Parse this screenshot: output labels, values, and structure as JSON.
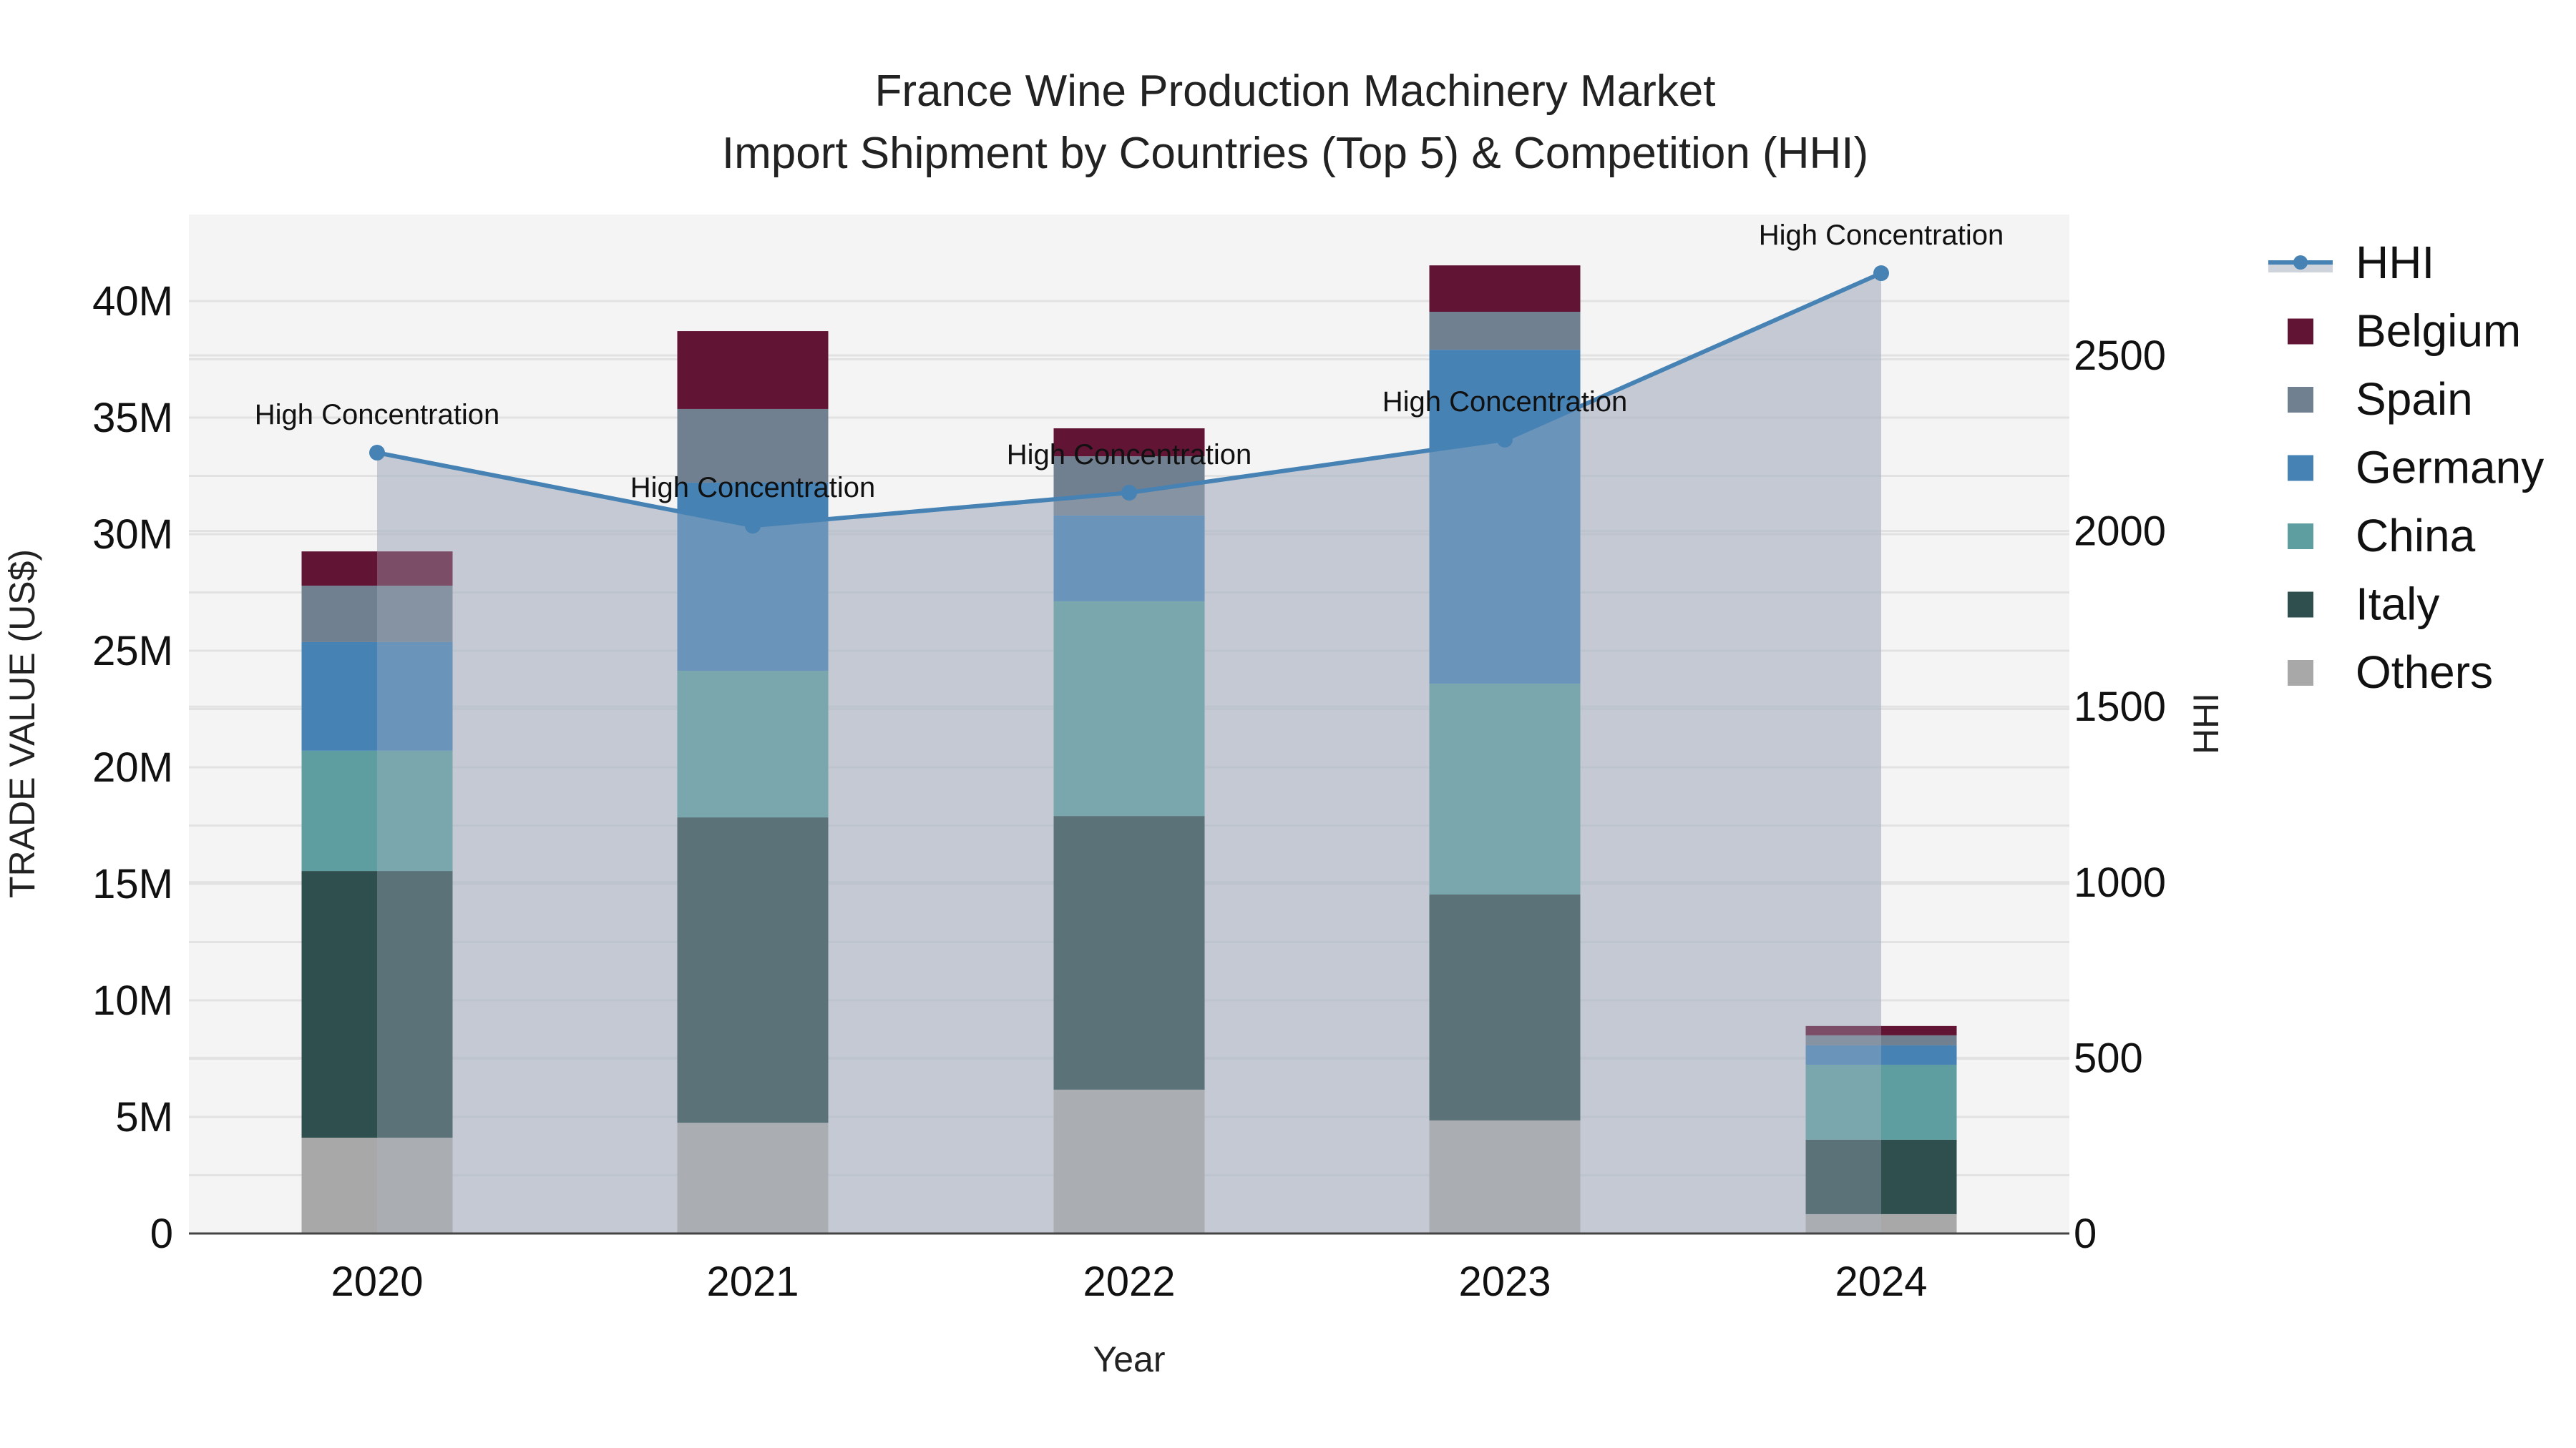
{
  "chart_data": {
    "type": "bar",
    "title": "France Wine Production Machinery Market",
    "subtitle": "Import Shipment by Countries (Top 5) & Competition (HHI)",
    "xlabel": "Year",
    "ylabel": "TRADE VALUE (US$)",
    "y2label": "HHI",
    "categories": [
      "2020",
      "2021",
      "2022",
      "2023",
      "2024"
    ],
    "stacked": true,
    "ylim": [
      0,
      44000000
    ],
    "y2lim": [
      0,
      2900
    ],
    "yticks": [
      0,
      5000000,
      10000000,
      15000000,
      20000000,
      25000000,
      30000000,
      35000000,
      40000000
    ],
    "ytick_labels": [
      "0",
      "5M",
      "10M",
      "15M",
      "20M",
      "25M",
      "30M",
      "35M",
      "40M"
    ],
    "y2ticks": [
      0,
      500,
      1000,
      1500,
      2000,
      2500
    ],
    "y2tick_labels": [
      "0",
      "500",
      "1000",
      "1500",
      "2000",
      "2500"
    ],
    "grid": true,
    "legend_position": "right",
    "series": [
      {
        "name": "Others",
        "color": "#a8a8a8",
        "values": [
          4110000,
          4750000,
          6170000,
          4850000,
          830000
        ]
      },
      {
        "name": "Italy",
        "color": "#2f4f4f",
        "values": [
          11440000,
          13100000,
          11740000,
          9690000,
          3190000
        ]
      },
      {
        "name": "China",
        "color": "#5f9ea0",
        "values": [
          5160000,
          6290000,
          9210000,
          9050000,
          3220000
        ]
      },
      {
        "name": "Germany",
        "color": "#4682b4",
        "values": [
          4660000,
          8070000,
          3680000,
          14320000,
          830000
        ]
      },
      {
        "name": "Spain",
        "color": "#708090",
        "values": [
          2420000,
          3160000,
          2540000,
          1630000,
          430000
        ]
      },
      {
        "name": "Belgium",
        "color": "#611434",
        "values": [
          1470000,
          3340000,
          1200000,
          1990000,
          400000
        ]
      }
    ],
    "line_series": {
      "name": "HHI",
      "axis": "y2",
      "color": "#4682b4",
      "fill_color": "#b0b8c6",
      "values": [
        2223,
        2015,
        2109,
        2260,
        2734
      ],
      "annotations": [
        "High Concentration",
        "High Concentration",
        "High Concentration",
        "High Concentration",
        "High Concentration"
      ]
    }
  },
  "legend": {
    "items": [
      {
        "label": "HHI",
        "type": "line",
        "color": "#4682b4"
      },
      {
        "label": "Belgium",
        "type": "box",
        "color": "#611434"
      },
      {
        "label": "Spain",
        "type": "box",
        "color": "#708090"
      },
      {
        "label": "Germany",
        "type": "box",
        "color": "#4682b4"
      },
      {
        "label": "China",
        "type": "box",
        "color": "#5f9ea0"
      },
      {
        "label": "Italy",
        "type": "box",
        "color": "#2f4f4f"
      },
      {
        "label": "Others",
        "type": "box",
        "color": "#a8a8a8"
      }
    ]
  },
  "colors": {
    "plot_bg": "#f4f4f4",
    "grid": "#e2e2e2",
    "axis_line": "#444444"
  }
}
